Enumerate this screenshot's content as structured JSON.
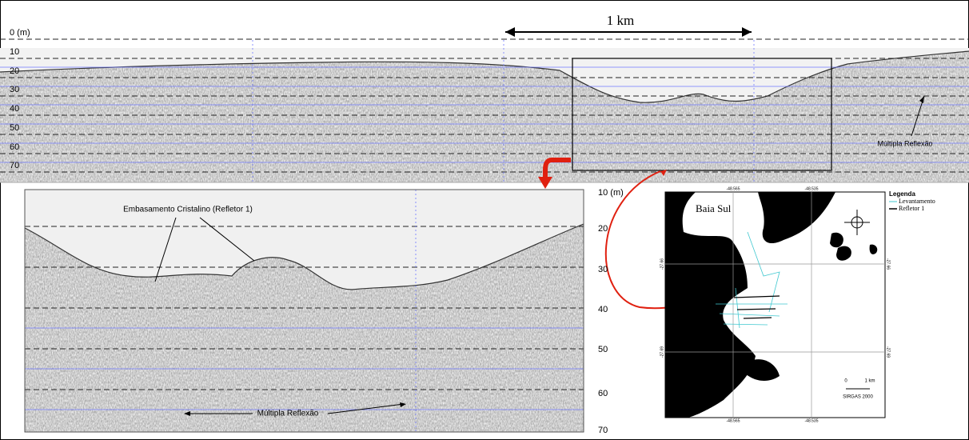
{
  "top_profile": {
    "scale_label": "1 km",
    "depth_labels": [
      "0 (m)",
      "10",
      "20",
      "30",
      "40",
      "50",
      "60",
      "70"
    ],
    "annotation": "Múltipla Reflexão"
  },
  "zoom_profile": {
    "annotation_basement": "Embasamento Cristalino (Refletor 1)",
    "annotation_multiple": "Múltipla Reflexão"
  },
  "depth_axis": {
    "labels": [
      "10 (m)",
      "20",
      "30",
      "40",
      "50",
      "60",
      "70"
    ]
  },
  "map": {
    "place": "Baia Sul",
    "legend_title": "Legenda",
    "legend_items": [
      "Levantamento",
      "Refletor 1"
    ],
    "top_coords": [
      "-48.565",
      "-48.535"
    ],
    "bottom_coords": [
      "-48.565",
      "-48.535"
    ],
    "left_coords": [
      "-27.66",
      "-27.69"
    ],
    "right_coords": [
      "-27.66",
      "-27.69"
    ],
    "scale_zero": "0",
    "scale_label": "1 km",
    "datum": "SIRGAS 2000"
  }
}
